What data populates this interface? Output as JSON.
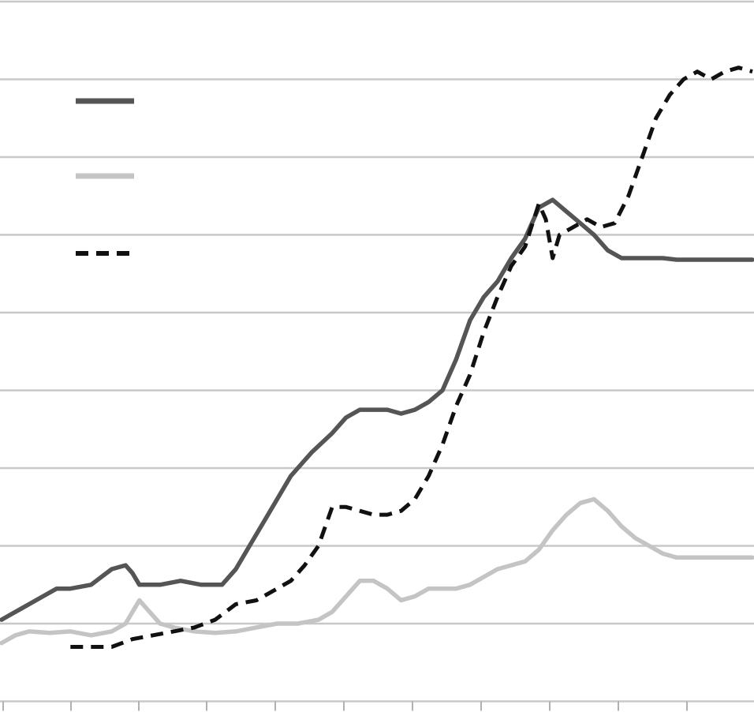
{
  "chart_data": {
    "type": "line",
    "title": "",
    "xlabel": "",
    "ylabel": "",
    "x_tick_labels": [],
    "y_tick_labels": [],
    "ylim": [
      0,
      9
    ],
    "grid": true,
    "legend_position": "top-left",
    "series": [
      {
        "style": "solid",
        "color": "#555555",
        "x": [
          0,
          0.1,
          0.3,
          0.6,
          0.8,
          1.0,
          1.3,
          1.6,
          1.8,
          1.9,
          2.0,
          2.1,
          2.3,
          2.6,
          2.9,
          3.2,
          3.4,
          3.6,
          3.8,
          4.0,
          4.2,
          4.5,
          4.8,
          5.0,
          5.2,
          5.4,
          5.6,
          5.8,
          6.0,
          6.2,
          6.4,
          6.6,
          6.8,
          7.0,
          7.2,
          7.4,
          7.6,
          7.8,
          8.0,
          8.2,
          8.4,
          8.6,
          8.8,
          9.0,
          9.2,
          9.4,
          9.6,
          9.8,
          10.0,
          10.3,
          10.6,
          10.9
        ],
        "y": [
          0.05,
          0.1,
          0.2,
          0.35,
          0.45,
          0.45,
          0.5,
          0.7,
          0.75,
          0.65,
          0.5,
          0.5,
          0.5,
          0.55,
          0.5,
          0.5,
          0.7,
          1.0,
          1.3,
          1.6,
          1.9,
          2.2,
          2.45,
          2.65,
          2.75,
          2.75,
          2.75,
          2.7,
          2.75,
          2.85,
          3.0,
          3.4,
          3.9,
          4.2,
          4.4,
          4.7,
          4.95,
          5.35,
          5.45,
          5.3,
          5.15,
          5.0,
          4.8,
          4.7,
          4.7,
          4.7,
          4.7,
          4.68,
          4.68,
          4.68,
          4.68,
          4.68
        ]
      },
      {
        "style": "solid",
        "color": "#c4c4c4",
        "x": [
          0,
          0.2,
          0.4,
          0.7,
          1.0,
          1.3,
          1.6,
          1.8,
          2.0,
          2.1,
          2.3,
          2.5,
          2.8,
          3.1,
          3.4,
          3.7,
          4.0,
          4.3,
          4.6,
          4.8,
          5.0,
          5.2,
          5.4,
          5.6,
          5.8,
          6.0,
          6.2,
          6.4,
          6.6,
          6.8,
          7.0,
          7.2,
          7.4,
          7.6,
          7.8,
          8.0,
          8.2,
          8.4,
          8.6,
          8.8,
          9.0,
          9.2,
          9.4,
          9.6,
          9.8,
          10.0,
          10.3,
          10.6,
          10.9
        ],
        "y": [
          -0.25,
          -0.15,
          -0.1,
          -0.12,
          -0.1,
          -0.15,
          -0.1,
          0.0,
          0.3,
          0.2,
          0.0,
          -0.05,
          -0.1,
          -0.12,
          -0.1,
          -0.05,
          0.0,
          0.0,
          0.05,
          0.15,
          0.35,
          0.55,
          0.55,
          0.45,
          0.3,
          0.35,
          0.45,
          0.45,
          0.45,
          0.5,
          0.6,
          0.7,
          0.75,
          0.8,
          0.95,
          1.2,
          1.4,
          1.55,
          1.6,
          1.45,
          1.25,
          1.1,
          1.0,
          0.9,
          0.85,
          0.85,
          0.85,
          0.85,
          0.85
        ]
      },
      {
        "style": "dashed",
        "color": "#111111",
        "x": [
          1.0,
          1.3,
          1.6,
          1.9,
          2.2,
          2.5,
          2.8,
          3.1,
          3.4,
          3.7,
          4.0,
          4.2,
          4.4,
          4.6,
          4.8,
          5.0,
          5.2,
          5.4,
          5.6,
          5.8,
          6.0,
          6.2,
          6.4,
          6.6,
          6.8,
          7.0,
          7.2,
          7.4,
          7.6,
          7.8,
          7.9,
          8.0,
          8.1,
          8.3,
          8.5,
          8.7,
          8.9,
          9.1,
          9.3,
          9.5,
          9.7,
          9.9,
          10.1,
          10.3,
          10.5,
          10.7,
          10.9
        ],
        "y": [
          -0.3,
          -0.3,
          -0.3,
          -0.2,
          -0.15,
          -0.1,
          -0.05,
          0.05,
          0.25,
          0.3,
          0.45,
          0.55,
          0.75,
          1.0,
          1.5,
          1.5,
          1.45,
          1.4,
          1.4,
          1.45,
          1.6,
          1.9,
          2.3,
          2.8,
          3.2,
          3.75,
          4.2,
          4.6,
          4.85,
          5.4,
          5.2,
          4.7,
          5.0,
          5.1,
          5.2,
          5.1,
          5.15,
          5.5,
          6.0,
          6.5,
          6.8,
          7.0,
          7.1,
          7.0,
          7.1,
          7.15,
          7.1
        ]
      }
    ]
  },
  "legend": [
    {
      "series": 0,
      "label": ""
    },
    {
      "series": 1,
      "label": ""
    },
    {
      "series": 2,
      "label": ""
    }
  ]
}
